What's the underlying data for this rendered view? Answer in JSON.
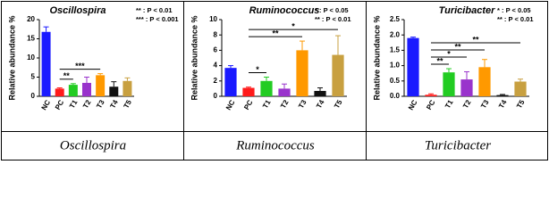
{
  "chart_data": [
    {
      "type": "bar",
      "title": "Oscillospira",
      "y_label": "Relative abundance %",
      "caption": "Oscillospira",
      "categories": [
        "NC",
        "PC",
        "T1",
        "T2",
        "T3",
        "T4",
        "T5"
      ],
      "values": [
        16.8,
        2.0,
        3.0,
        3.5,
        5.5,
        2.5,
        4.0
      ],
      "errors": [
        1.3,
        0.2,
        0.3,
        1.5,
        0.4,
        1.3,
        0.8
      ],
      "colors": [
        "#1a1aff",
        "#ff1a1a",
        "#22cc22",
        "#9933cc",
        "#ff9900",
        "#111111",
        "#c8a040"
      ],
      "ylim": [
        0,
        20
      ],
      "yticks": [
        0,
        5,
        10,
        15,
        20
      ],
      "significance": [
        {
          "from": "PC",
          "to": "T1",
          "label": "**"
        },
        {
          "from": "PC",
          "to": "T3",
          "label": "***"
        }
      ],
      "notes": [
        "** : P < 0.01",
        "*** : P < 0.001"
      ]
    },
    {
      "type": "bar",
      "title": "Ruminococcus",
      "y_label": "Relative abundance %",
      "caption": "Ruminococcus",
      "categories": [
        "NC",
        "PC",
        "T1",
        "T2",
        "T3",
        "T4",
        "T5"
      ],
      "values": [
        3.7,
        1.1,
        2.0,
        1.0,
        6.0,
        0.7,
        5.4
      ],
      "errors": [
        0.3,
        0.1,
        0.5,
        0.6,
        1.2,
        0.4,
        2.5
      ],
      "colors": [
        "#1a1aff",
        "#ff1a1a",
        "#22cc22",
        "#9933cc",
        "#ff9900",
        "#111111",
        "#c8a040"
      ],
      "ylim": [
        0,
        10
      ],
      "yticks": [
        0,
        2,
        4,
        6,
        8,
        10
      ],
      "significance": [
        {
          "from": "PC",
          "to": "T1",
          "label": "*"
        },
        {
          "from": "PC",
          "to": "T3",
          "label": "**"
        },
        {
          "from": "PC",
          "to": "T5",
          "label": "*"
        }
      ],
      "notes": [
        "* : P < 0.05",
        "** : P < 0.01"
      ]
    },
    {
      "type": "bar",
      "title": "Turicibacter",
      "y_label": "Relative abundance %",
      "caption": "Turicibacter",
      "categories": [
        "NC",
        "PC",
        "T1",
        "T2",
        "T3",
        "T4",
        "T5"
      ],
      "values": [
        1.9,
        0.05,
        0.78,
        0.55,
        0.95,
        0.04,
        0.48
      ],
      "errors": [
        0.03,
        0.03,
        0.12,
        0.25,
        0.25,
        0.02,
        0.08
      ],
      "colors": [
        "#1a1aff",
        "#ff1a1a",
        "#22cc22",
        "#9933cc",
        "#ff9900",
        "#111111",
        "#c8a040"
      ],
      "ylim": [
        0,
        2.5
      ],
      "yticks": [
        {
          "value": 0,
          "label": "0.0"
        },
        0.5,
        {
          "value": 1,
          "label": "1.0"
        },
        1.5,
        {
          "value": 2,
          "label": "2.0"
        },
        2.5
      ],
      "significance": [
        {
          "from": "PC",
          "to": "T1",
          "label": "**"
        },
        {
          "from": "PC",
          "to": "T2",
          "label": "*"
        },
        {
          "from": "PC",
          "to": "T3",
          "label": "**"
        },
        {
          "from": "PC",
          "to": "T5",
          "label": "**"
        }
      ],
      "notes": [
        "* : P < 0.05",
        "** : P < 0.01"
      ]
    }
  ]
}
